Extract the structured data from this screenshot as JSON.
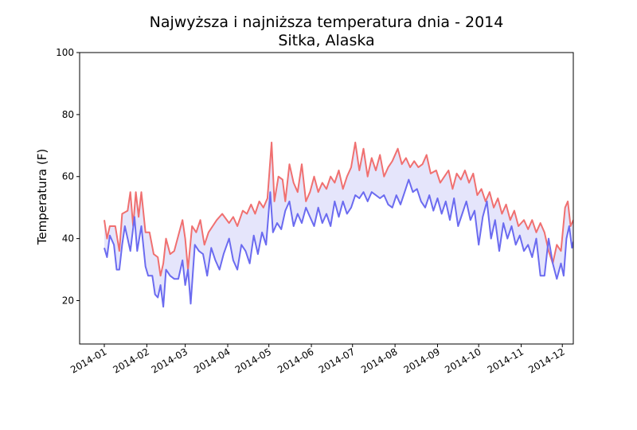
{
  "chart_data": {
    "type": "line",
    "title_line1": "Najwyższa i najniższa temperatura dnia - 2014",
    "title_line2": "Sitka, Alaska",
    "xlabel": "",
    "ylabel": "Temperatura (F)",
    "ylim": [
      6,
      100
    ],
    "y_ticks": [
      20,
      40,
      60,
      80,
      100
    ],
    "x_range": [
      "2013-12-14",
      "2014-12-09"
    ],
    "x_ticks": [
      "2014-01",
      "2014-02",
      "2014-03",
      "2014-04",
      "2014-05",
      "2014-06",
      "2014-07",
      "2014-08",
      "2014-09",
      "2014-10",
      "2014-11",
      "2014-12"
    ],
    "grid": false,
    "fill_between": true,
    "colors": {
      "high": "#f07070",
      "low": "#6b6bf0",
      "fill": "#dcdcfa"
    },
    "series": [
      {
        "role": "high",
        "points": [
          [
            "2014-01-01",
            46
          ],
          [
            "2014-01-03",
            40
          ],
          [
            "2014-01-05",
            44
          ],
          [
            "2014-01-09",
            44
          ],
          [
            "2014-01-12",
            36
          ],
          [
            "2014-01-14",
            48
          ],
          [
            "2014-01-18",
            49
          ],
          [
            "2014-01-20",
            55
          ],
          [
            "2014-01-22",
            44
          ],
          [
            "2014-01-24",
            55
          ],
          [
            "2014-01-26",
            47
          ],
          [
            "2014-01-28",
            55
          ],
          [
            "2014-01-31",
            42
          ],
          [
            "2014-02-03",
            42
          ],
          [
            "2014-02-06",
            35
          ],
          [
            "2014-02-09",
            34
          ],
          [
            "2014-02-11",
            28
          ],
          [
            "2014-02-13",
            32
          ],
          [
            "2014-02-15",
            40
          ],
          [
            "2014-02-18",
            35
          ],
          [
            "2014-02-21",
            36
          ],
          [
            "2014-02-24",
            41
          ],
          [
            "2014-02-27",
            46
          ],
          [
            "2014-03-01",
            40
          ],
          [
            "2014-03-03",
            30
          ],
          [
            "2014-03-06",
            44
          ],
          [
            "2014-03-09",
            42
          ],
          [
            "2014-03-12",
            46
          ],
          [
            "2014-03-15",
            38
          ],
          [
            "2014-03-18",
            42
          ],
          [
            "2014-03-21",
            44
          ],
          [
            "2014-03-24",
            46
          ],
          [
            "2014-03-28",
            48
          ],
          [
            "2014-04-02",
            45
          ],
          [
            "2014-04-05",
            47
          ],
          [
            "2014-04-08",
            44
          ],
          [
            "2014-04-12",
            49
          ],
          [
            "2014-04-15",
            48
          ],
          [
            "2014-04-18",
            51
          ],
          [
            "2014-04-21",
            48
          ],
          [
            "2014-04-24",
            52
          ],
          [
            "2014-04-27",
            50
          ],
          [
            "2014-04-30",
            53
          ],
          [
            "2014-05-03",
            71
          ],
          [
            "2014-05-05",
            52
          ],
          [
            "2014-05-08",
            60
          ],
          [
            "2014-05-11",
            59
          ],
          [
            "2014-05-13",
            52
          ],
          [
            "2014-05-16",
            64
          ],
          [
            "2014-05-19",
            58
          ],
          [
            "2014-05-22",
            55
          ],
          [
            "2014-05-25",
            64
          ],
          [
            "2014-05-28",
            52
          ],
          [
            "2014-05-31",
            55
          ],
          [
            "2014-06-03",
            60
          ],
          [
            "2014-06-06",
            55
          ],
          [
            "2014-06-09",
            58
          ],
          [
            "2014-06-12",
            56
          ],
          [
            "2014-06-15",
            60
          ],
          [
            "2014-06-18",
            58
          ],
          [
            "2014-06-21",
            62
          ],
          [
            "2014-06-24",
            56
          ],
          [
            "2014-06-27",
            60
          ],
          [
            "2014-06-30",
            63
          ],
          [
            "2014-07-03",
            71
          ],
          [
            "2014-07-06",
            62
          ],
          [
            "2014-07-09",
            69
          ],
          [
            "2014-07-12",
            60
          ],
          [
            "2014-07-15",
            66
          ],
          [
            "2014-07-18",
            62
          ],
          [
            "2014-07-21",
            67
          ],
          [
            "2014-07-24",
            60
          ],
          [
            "2014-07-27",
            63
          ],
          [
            "2014-07-30",
            65
          ],
          [
            "2014-08-03",
            69
          ],
          [
            "2014-08-06",
            64
          ],
          [
            "2014-08-09",
            66
          ],
          [
            "2014-08-12",
            63
          ],
          [
            "2014-08-15",
            65
          ],
          [
            "2014-08-18",
            63
          ],
          [
            "2014-08-21",
            64
          ],
          [
            "2014-08-24",
            67
          ],
          [
            "2014-08-27",
            61
          ],
          [
            "2014-08-31",
            62
          ],
          [
            "2014-09-03",
            58
          ],
          [
            "2014-09-06",
            60
          ],
          [
            "2014-09-09",
            62
          ],
          [
            "2014-09-12",
            56
          ],
          [
            "2014-09-15",
            61
          ],
          [
            "2014-09-18",
            59
          ],
          [
            "2014-09-21",
            62
          ],
          [
            "2014-09-24",
            58
          ],
          [
            "2014-09-27",
            61
          ],
          [
            "2014-09-30",
            54
          ],
          [
            "2014-10-03",
            56
          ],
          [
            "2014-10-06",
            52
          ],
          [
            "2014-10-09",
            55
          ],
          [
            "2014-10-12",
            50
          ],
          [
            "2014-10-15",
            53
          ],
          [
            "2014-10-18",
            48
          ],
          [
            "2014-10-21",
            51
          ],
          [
            "2014-10-24",
            46
          ],
          [
            "2014-10-27",
            49
          ],
          [
            "2014-10-30",
            44
          ],
          [
            "2014-11-03",
            46
          ],
          [
            "2014-11-06",
            43
          ],
          [
            "2014-11-09",
            46
          ],
          [
            "2014-11-12",
            42
          ],
          [
            "2014-11-15",
            45
          ],
          [
            "2014-11-18",
            42
          ],
          [
            "2014-11-21",
            36
          ],
          [
            "2014-11-24",
            32
          ],
          [
            "2014-11-27",
            38
          ],
          [
            "2014-11-30",
            36
          ],
          [
            "2014-12-03",
            50
          ],
          [
            "2014-12-05",
            52
          ],
          [
            "2014-12-07",
            44
          ],
          [
            "2014-12-09",
            46
          ]
        ]
      },
      {
        "role": "low",
        "points": [
          [
            "2014-01-01",
            37
          ],
          [
            "2014-01-03",
            34
          ],
          [
            "2014-01-05",
            41
          ],
          [
            "2014-01-08",
            38
          ],
          [
            "2014-01-10",
            30
          ],
          [
            "2014-01-12",
            30
          ],
          [
            "2014-01-14",
            38
          ],
          [
            "2014-01-16",
            44
          ],
          [
            "2014-01-18",
            40
          ],
          [
            "2014-01-20",
            36
          ],
          [
            "2014-01-23",
            47
          ],
          [
            "2014-01-25",
            36
          ],
          [
            "2014-01-28",
            44
          ],
          [
            "2014-01-31",
            31
          ],
          [
            "2014-02-02",
            28
          ],
          [
            "2014-02-05",
            28
          ],
          [
            "2014-02-07",
            22
          ],
          [
            "2014-02-09",
            21
          ],
          [
            "2014-02-11",
            25
          ],
          [
            "2014-02-13",
            18
          ],
          [
            "2014-02-15",
            30
          ],
          [
            "2014-02-18",
            28
          ],
          [
            "2014-02-21",
            27
          ],
          [
            "2014-02-24",
            27
          ],
          [
            "2014-02-27",
            33
          ],
          [
            "2014-03-01",
            25
          ],
          [
            "2014-03-03",
            30
          ],
          [
            "2014-03-05",
            19
          ],
          [
            "2014-03-08",
            38
          ],
          [
            "2014-03-11",
            36
          ],
          [
            "2014-03-14",
            35
          ],
          [
            "2014-03-17",
            28
          ],
          [
            "2014-03-20",
            37
          ],
          [
            "2014-03-23",
            33
          ],
          [
            "2014-03-26",
            30
          ],
          [
            "2014-03-29",
            35
          ],
          [
            "2014-04-02",
            40
          ],
          [
            "2014-04-05",
            33
          ],
          [
            "2014-04-08",
            30
          ],
          [
            "2014-04-11",
            38
          ],
          [
            "2014-04-14",
            36
          ],
          [
            "2014-04-17",
            32
          ],
          [
            "2014-04-20",
            41
          ],
          [
            "2014-04-23",
            35
          ],
          [
            "2014-04-26",
            42
          ],
          [
            "2014-04-29",
            38
          ],
          [
            "2014-05-02",
            55
          ],
          [
            "2014-05-04",
            42
          ],
          [
            "2014-05-07",
            45
          ],
          [
            "2014-05-10",
            43
          ],
          [
            "2014-05-13",
            49
          ],
          [
            "2014-05-16",
            52
          ],
          [
            "2014-05-19",
            44
          ],
          [
            "2014-05-22",
            48
          ],
          [
            "2014-05-25",
            45
          ],
          [
            "2014-05-28",
            50
          ],
          [
            "2014-05-31",
            47
          ],
          [
            "2014-06-03",
            44
          ],
          [
            "2014-06-06",
            50
          ],
          [
            "2014-06-09",
            45
          ],
          [
            "2014-06-12",
            48
          ],
          [
            "2014-06-15",
            44
          ],
          [
            "2014-06-18",
            52
          ],
          [
            "2014-06-21",
            47
          ],
          [
            "2014-06-24",
            52
          ],
          [
            "2014-06-27",
            48
          ],
          [
            "2014-06-30",
            50
          ],
          [
            "2014-07-03",
            54
          ],
          [
            "2014-07-06",
            53
          ],
          [
            "2014-07-09",
            55
          ],
          [
            "2014-07-12",
            52
          ],
          [
            "2014-07-15",
            55
          ],
          [
            "2014-07-18",
            54
          ],
          [
            "2014-07-21",
            53
          ],
          [
            "2014-07-24",
            54
          ],
          [
            "2014-07-27",
            51
          ],
          [
            "2014-07-30",
            50
          ],
          [
            "2014-08-02",
            54
          ],
          [
            "2014-08-05",
            51
          ],
          [
            "2014-08-08",
            55
          ],
          [
            "2014-08-11",
            59
          ],
          [
            "2014-08-14",
            55
          ],
          [
            "2014-08-17",
            56
          ],
          [
            "2014-08-20",
            52
          ],
          [
            "2014-08-23",
            50
          ],
          [
            "2014-08-26",
            54
          ],
          [
            "2014-08-29",
            49
          ],
          [
            "2014-09-01",
            53
          ],
          [
            "2014-09-04",
            48
          ],
          [
            "2014-09-07",
            52
          ],
          [
            "2014-09-10",
            46
          ],
          [
            "2014-09-13",
            53
          ],
          [
            "2014-09-16",
            44
          ],
          [
            "2014-09-19",
            48
          ],
          [
            "2014-09-22",
            52
          ],
          [
            "2014-09-25",
            46
          ],
          [
            "2014-09-28",
            49
          ],
          [
            "2014-10-01",
            38
          ],
          [
            "2014-10-04",
            47
          ],
          [
            "2014-10-07",
            52
          ],
          [
            "2014-10-10",
            40
          ],
          [
            "2014-10-13",
            46
          ],
          [
            "2014-10-16",
            36
          ],
          [
            "2014-10-19",
            45
          ],
          [
            "2014-10-22",
            40
          ],
          [
            "2014-10-25",
            44
          ],
          [
            "2014-10-28",
            38
          ],
          [
            "2014-10-31",
            41
          ],
          [
            "2014-11-03",
            36
          ],
          [
            "2014-11-06",
            38
          ],
          [
            "2014-11-09",
            34
          ],
          [
            "2014-11-12",
            40
          ],
          [
            "2014-11-15",
            28
          ],
          [
            "2014-11-18",
            28
          ],
          [
            "2014-11-21",
            40
          ],
          [
            "2014-11-24",
            32
          ],
          [
            "2014-11-27",
            27
          ],
          [
            "2014-11-30",
            32
          ],
          [
            "2014-12-02",
            28
          ],
          [
            "2014-12-04",
            40
          ],
          [
            "2014-12-06",
            44
          ],
          [
            "2014-12-08",
            37
          ],
          [
            "2014-12-09",
            39
          ]
        ]
      }
    ]
  }
}
